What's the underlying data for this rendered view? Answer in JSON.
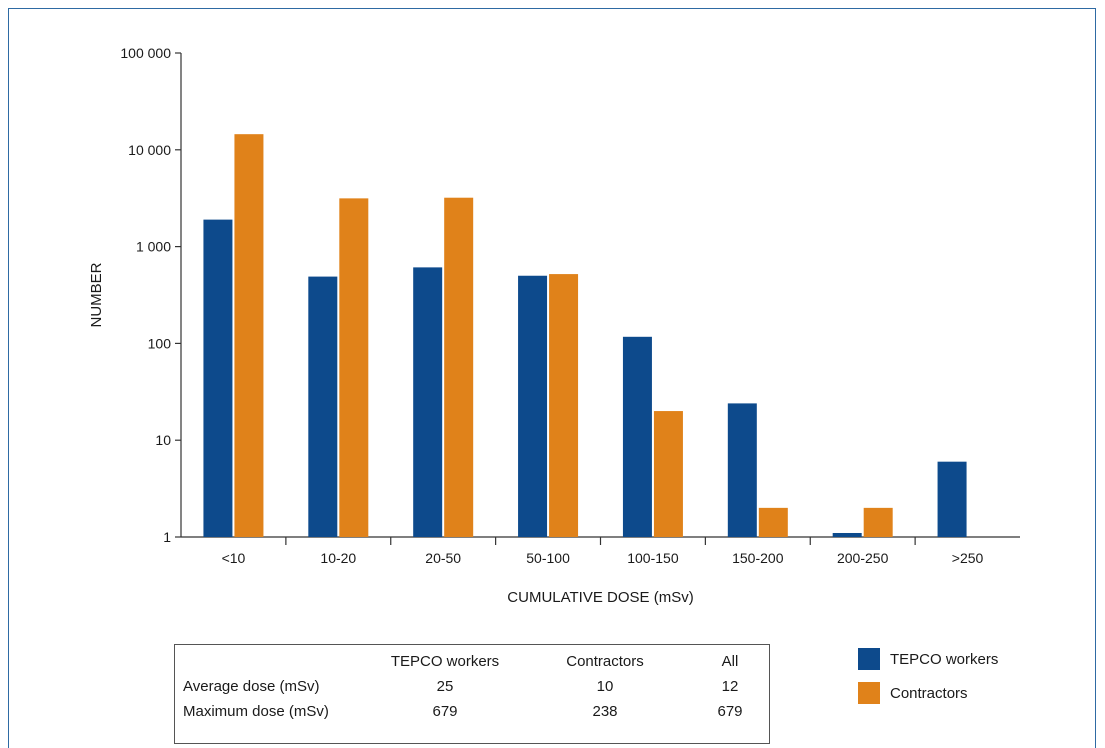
{
  "chart_data": {
    "type": "bar",
    "scale": "log",
    "xlabel": "CUMULATIVE DOSE (mSv)",
    "ylabel": "NUMBER",
    "ylim": [
      1,
      100000
    ],
    "yticks": [
      1,
      10,
      100,
      1000,
      10000,
      100000
    ],
    "ytick_labels": [
      "1",
      "10",
      "100",
      "1 000",
      "10 000",
      "100 000"
    ],
    "categories": [
      "<10",
      "10-20",
      "20-50",
      "50-100",
      "100-150",
      "150-200",
      "200-250",
      ">250"
    ],
    "series": [
      {
        "name": "TEPCO workers",
        "color": "#0d4a8c",
        "values": [
          1900,
          490,
          610,
          500,
          117,
          24,
          1.1,
          6
        ]
      },
      {
        "name": "Contractors",
        "color": "#e0821a",
        "values": [
          14500,
          3150,
          3200,
          520,
          20,
          2,
          2,
          null
        ]
      }
    ],
    "grid": false,
    "legend_position": "bottom-right"
  },
  "summary_table": {
    "headers": [
      "",
      "TEPCO workers",
      "Contractors",
      "All"
    ],
    "rows": [
      {
        "label": "Average dose (mSv)",
        "values": [
          "25",
          "10",
          "12"
        ]
      },
      {
        "label": "Maximum dose (mSv)",
        "values": [
          "679",
          "238",
          "679"
        ]
      }
    ]
  }
}
